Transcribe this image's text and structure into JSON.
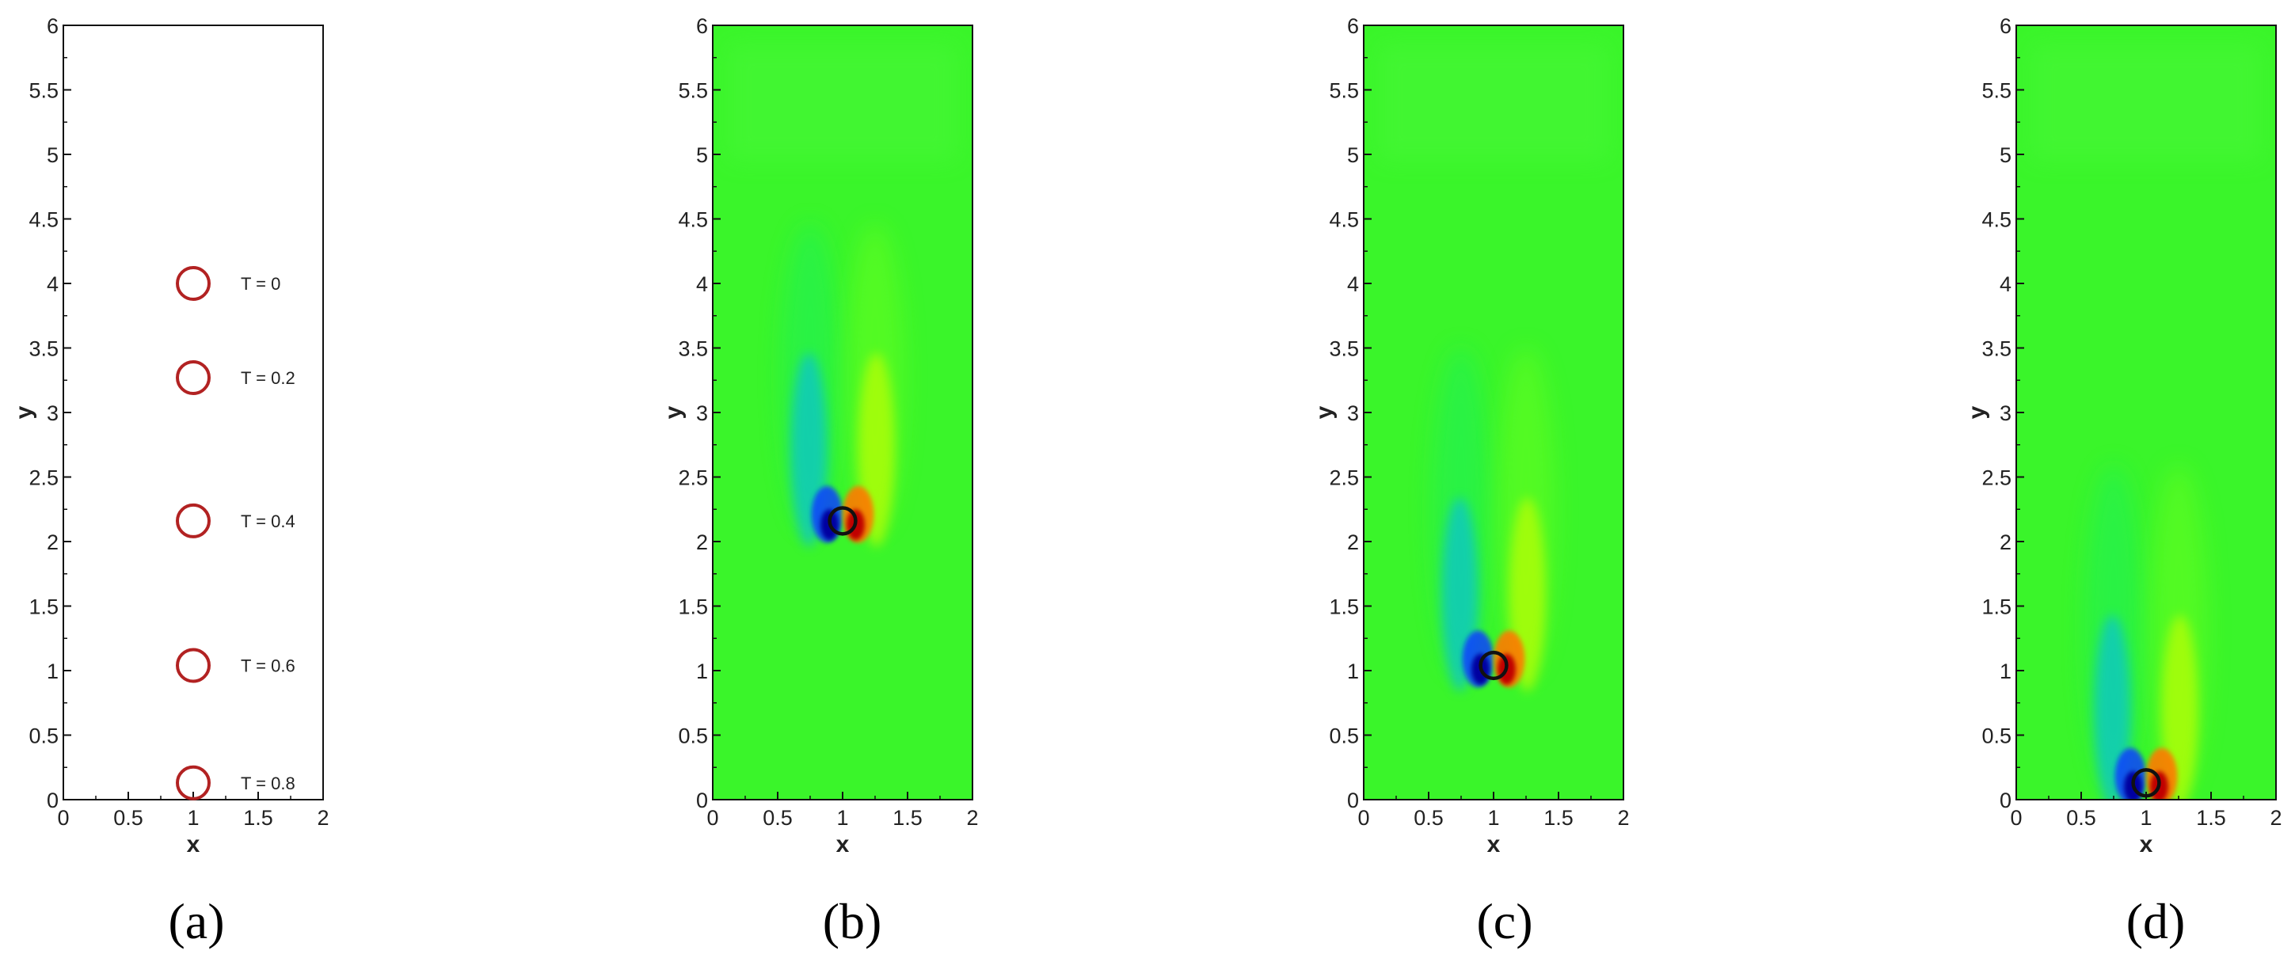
{
  "chart_data": [
    {
      "panel": "a",
      "type": "scatter",
      "caption": "(a)",
      "xlabel": "x",
      "ylabel": "y",
      "xlim": [
        0,
        2
      ],
      "ylim": [
        0,
        6
      ],
      "xticks": [
        "0",
        "0.5",
        "1",
        "1.5",
        "2"
      ],
      "yticks": [
        "0",
        "0.5",
        "1",
        "1.5",
        "2",
        "2.5",
        "3",
        "3.5",
        "4",
        "4.5",
        "5",
        "5.5",
        "6"
      ],
      "series": [
        {
          "marker": "circle",
          "color": "#b22222",
          "points": [
            {
              "x": 1.0,
              "y": 4.0,
              "label": "T = 0"
            },
            {
              "x": 1.0,
              "y": 3.27,
              "label": "T = 0.2"
            },
            {
              "x": 1.0,
              "y": 2.16,
              "label": "T = 0.4"
            },
            {
              "x": 1.0,
              "y": 1.04,
              "label": "T = 0.6"
            },
            {
              "x": 1.0,
              "y": 0.13,
              "label": "T = 0.8"
            }
          ]
        }
      ]
    },
    {
      "panel": "b",
      "type": "heatmap",
      "caption": "(b)",
      "xlabel": "x",
      "ylabel": "y",
      "xlim": [
        0,
        2
      ],
      "ylim": [
        0,
        6
      ],
      "xticks": [
        "0",
        "0.5",
        "1",
        "1.5",
        "2"
      ],
      "yticks": [
        "0",
        "0.5",
        "1",
        "1.5",
        "2",
        "2.5",
        "3",
        "3.5",
        "4",
        "4.5",
        "5",
        "5.5",
        "6"
      ],
      "particle": {
        "x": 1.0,
        "y": 2.16
      },
      "colormap": [
        "#0000a0",
        "#00b4ff",
        "#00ff7a",
        "#3af52a",
        "#c8ff00",
        "#ff7a00",
        "#c00000"
      ]
    },
    {
      "panel": "c",
      "type": "heatmap",
      "caption": "(c)",
      "xlabel": "x",
      "ylabel": "y",
      "xlim": [
        0,
        2
      ],
      "ylim": [
        0,
        6
      ],
      "xticks": [
        "0",
        "0.5",
        "1",
        "1.5",
        "2"
      ],
      "yticks": [
        "0",
        "0.5",
        "1",
        "1.5",
        "2",
        "2.5",
        "3",
        "3.5",
        "4",
        "4.5",
        "5",
        "5.5",
        "6"
      ],
      "particle": {
        "x": 1.0,
        "y": 1.04
      },
      "colormap": [
        "#0000a0",
        "#00b4ff",
        "#00ff7a",
        "#3af52a",
        "#c8ff00",
        "#ff7a00",
        "#c00000"
      ]
    },
    {
      "panel": "d",
      "type": "heatmap",
      "caption": "(d)",
      "xlabel": "x",
      "ylabel": "y",
      "xlim": [
        0,
        2
      ],
      "ylim": [
        0,
        6
      ],
      "xticks": [
        "0",
        "0.5",
        "1",
        "1.5",
        "2"
      ],
      "yticks": [
        "0",
        "0.5",
        "1",
        "1.5",
        "2",
        "2.5",
        "3",
        "3.5",
        "4",
        "4.5",
        "5",
        "5.5",
        "6"
      ],
      "particle": {
        "x": 1.0,
        "y": 0.13
      },
      "colormap": [
        "#0000a0",
        "#00b4ff",
        "#00ff7a",
        "#3af52a",
        "#c8ff00",
        "#ff7a00",
        "#c00000"
      ]
    }
  ]
}
